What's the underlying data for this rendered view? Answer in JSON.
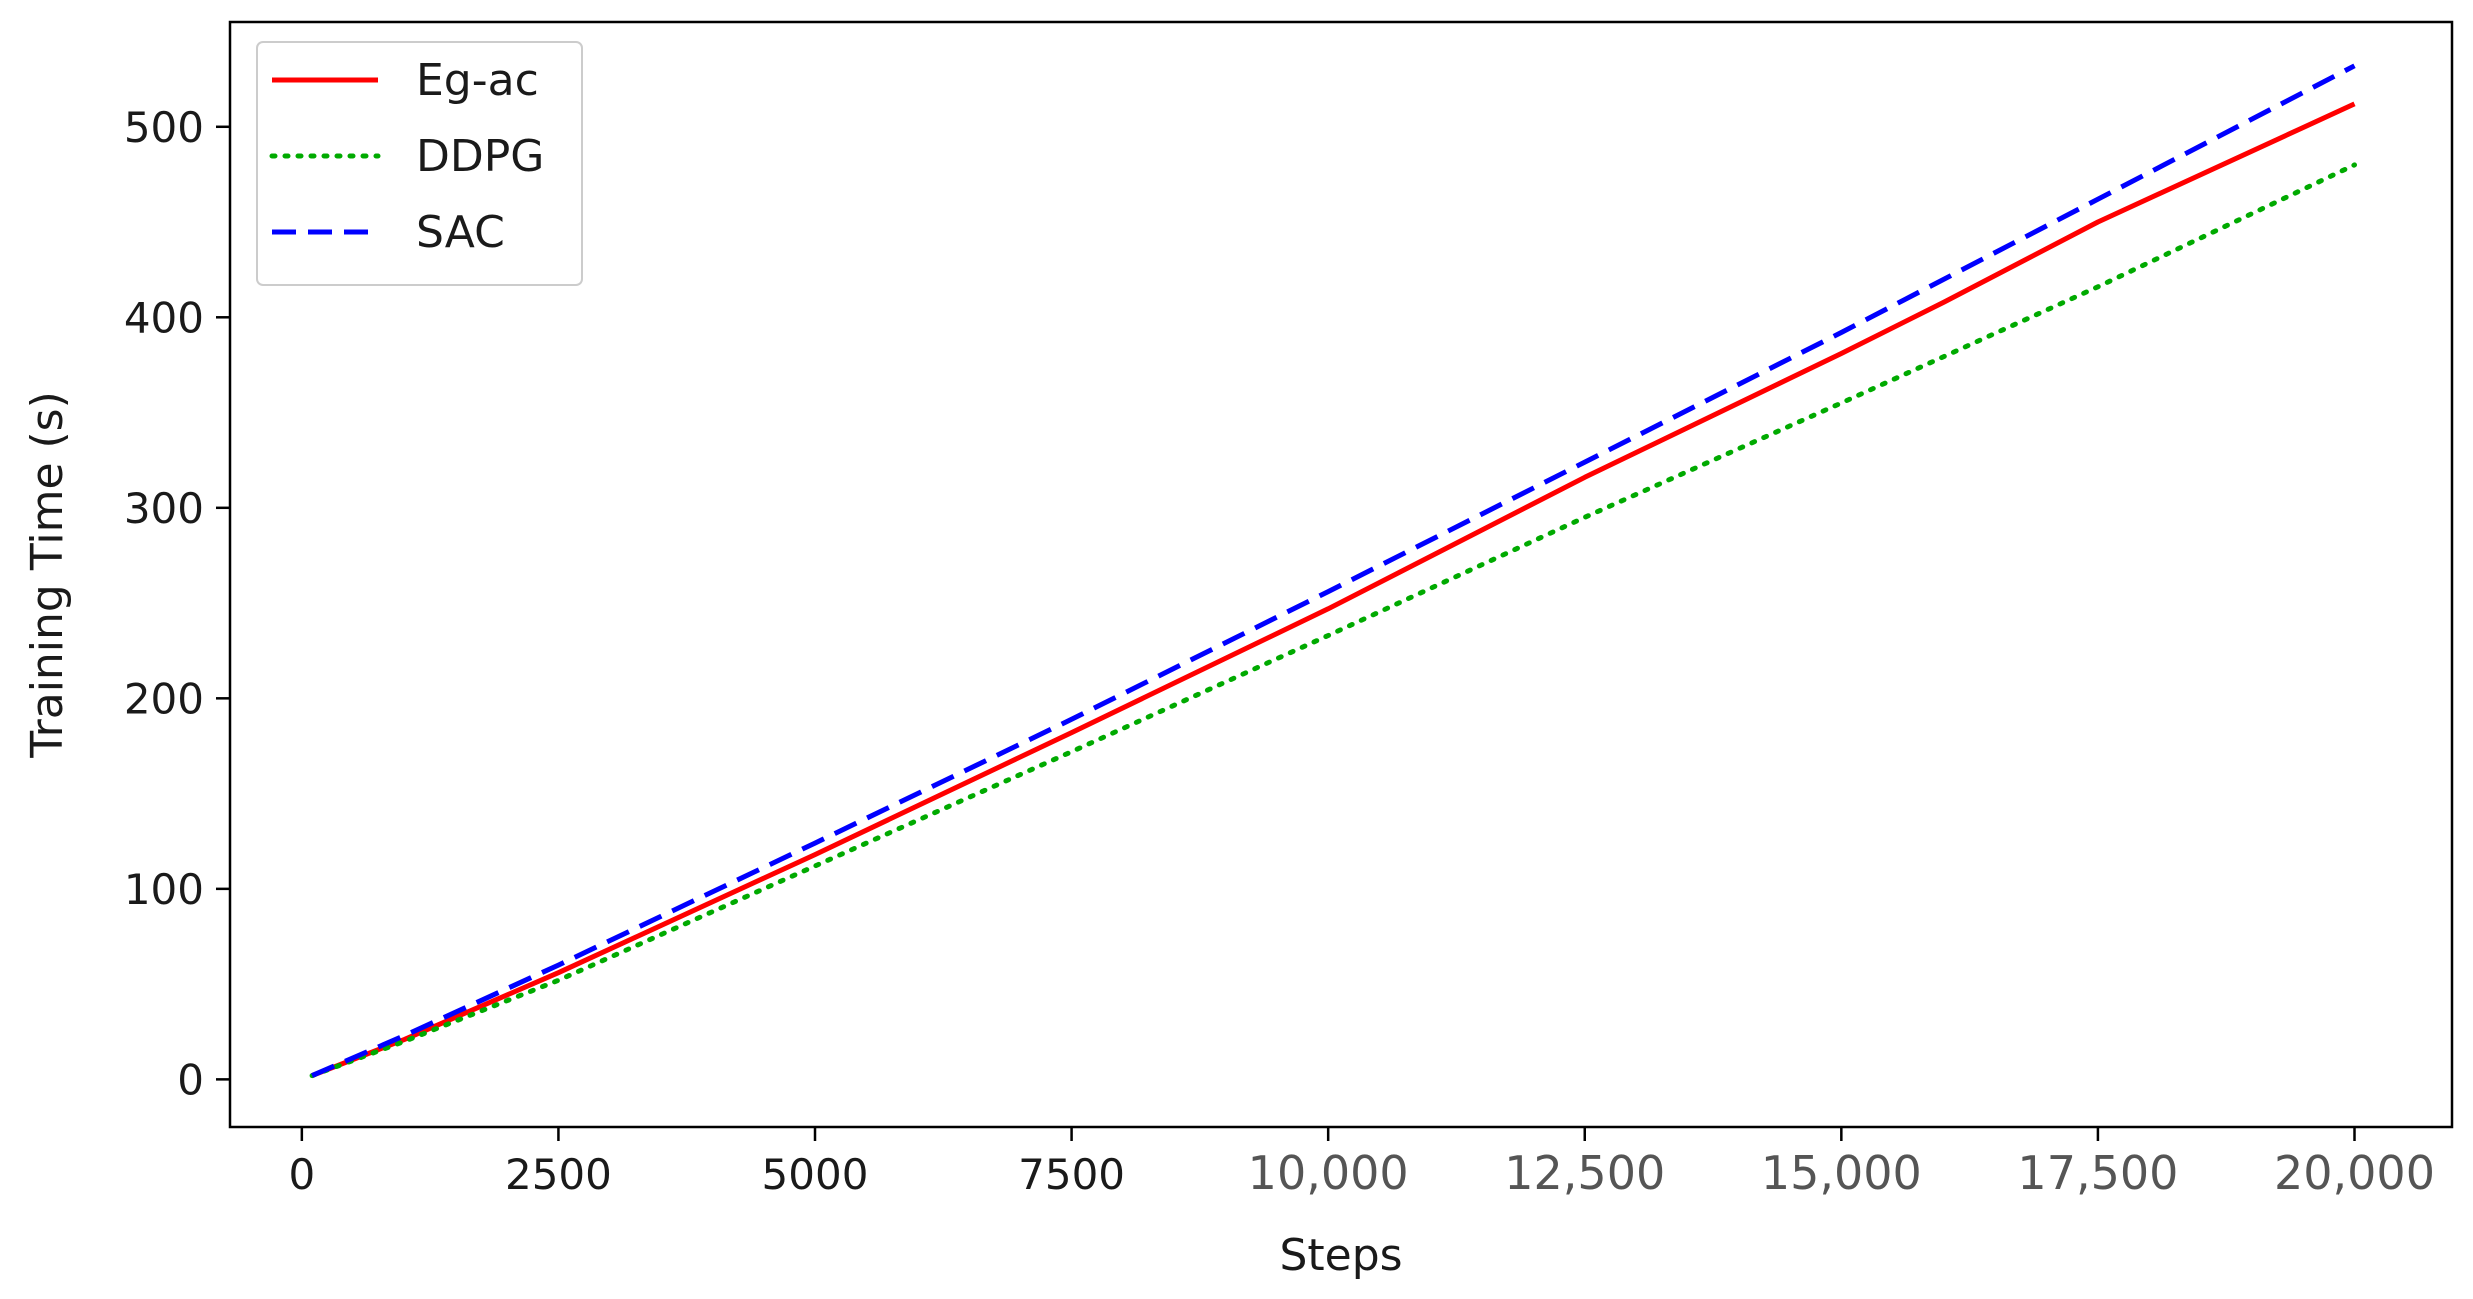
{
  "chart_data": {
    "type": "line",
    "title": "",
    "xlabel": "Steps",
    "ylabel": "Training Time (s)",
    "xlim": [
      -700,
      20950
    ],
    "ylim": [
      -25,
      555
    ],
    "grid": false,
    "legend_position": "top-left",
    "x_ticks": [
      {
        "value": 0,
        "label": "0",
        "style": "normal"
      },
      {
        "value": 2500,
        "label": "2500",
        "style": "normal"
      },
      {
        "value": 5000,
        "label": "5000",
        "style": "normal"
      },
      {
        "value": 7500,
        "label": "7500",
        "style": "normal"
      },
      {
        "value": 10000,
        "label": "10,000",
        "style": "alt"
      },
      {
        "value": 12500,
        "label": "12,500",
        "style": "alt"
      },
      {
        "value": 15000,
        "label": "15,000",
        "style": "alt"
      },
      {
        "value": 17500,
        "label": "17,500",
        "style": "alt"
      },
      {
        "value": 20000,
        "label": "20,000",
        "style": "alt"
      }
    ],
    "y_ticks": [
      {
        "value": 0,
        "label": "0"
      },
      {
        "value": 100,
        "label": "100"
      },
      {
        "value": 200,
        "label": "200"
      },
      {
        "value": 300,
        "label": "300"
      },
      {
        "value": 400,
        "label": "400"
      },
      {
        "value": 500,
        "label": "500"
      }
    ],
    "series": [
      {
        "name": "Eg-ac",
        "color": "#ff0000",
        "style": "solid",
        "x": [
          100,
          1000,
          2500,
          5000,
          7500,
          10000,
          12500,
          15000,
          16000,
          17500,
          20000
        ],
        "y": [
          2,
          21,
          56,
          118,
          182,
          247,
          316,
          381,
          408,
          450,
          512
        ]
      },
      {
        "name": "DDPG",
        "color": "#00aa00",
        "style": "dotted",
        "x": [
          100,
          1000,
          2500,
          5000,
          7500,
          10000,
          12500,
          15000,
          17500,
          20000
        ],
        "y": [
          2,
          20,
          52,
          112,
          172,
          233,
          295,
          355,
          416,
          480
        ]
      },
      {
        "name": "SAC",
        "color": "#0000ff",
        "style": "dashed",
        "x": [
          100,
          1000,
          2500,
          5000,
          7500,
          10000,
          12500,
          15000,
          17500,
          20000
        ],
        "y": [
          2,
          23,
          60,
          124,
          189,
          256,
          324,
          392,
          462,
          532
        ]
      }
    ]
  }
}
